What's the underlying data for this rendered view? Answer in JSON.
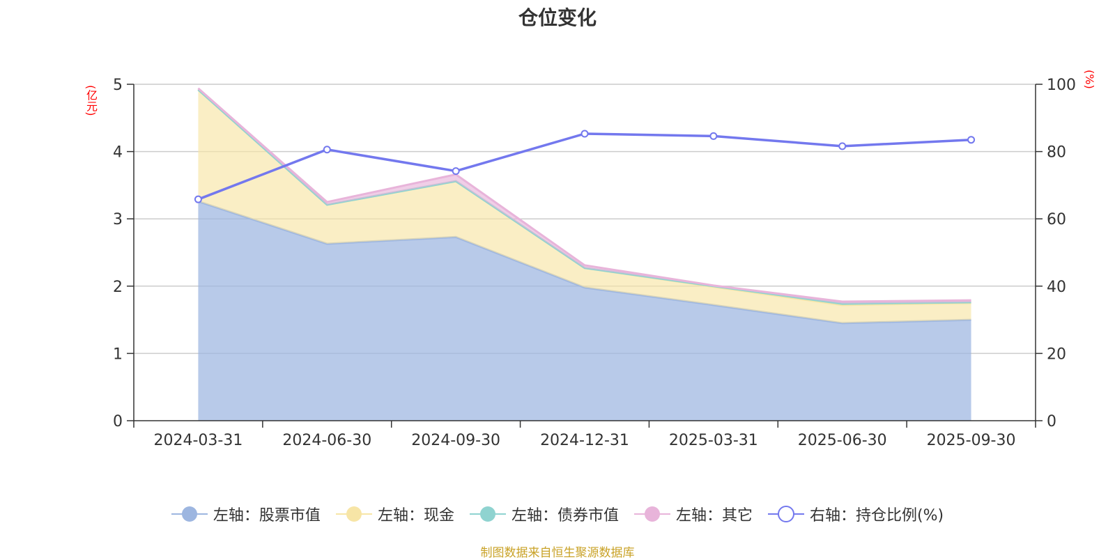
{
  "chart_data": {
    "type": "area",
    "title": "仓位变化",
    "categories": [
      "2024-03-31",
      "2024-06-30",
      "2024-09-30",
      "2024-12-31",
      "2025-03-31",
      "2025-06-30",
      "2025-09-30"
    ],
    "y_left": {
      "unit": "(亿元)",
      "ylim": [
        0,
        5
      ],
      "ticks": [
        "0",
        "1",
        "2",
        "3",
        "4",
        "5"
      ]
    },
    "y_right": {
      "unit": "(%)",
      "ylim": [
        0,
        100
      ],
      "ticks": [
        "0",
        "20",
        "40",
        "60",
        "80",
        "100"
      ]
    },
    "stacked": true,
    "grid": true,
    "legend_position": "bottom",
    "series": [
      {
        "name": "左轴：股票市值",
        "axis": "left",
        "type": "area",
        "color": "#9db6e0",
        "values": [
          3.26,
          2.63,
          2.73,
          1.98,
          1.72,
          1.45,
          1.5
        ]
      },
      {
        "name": "左轴：现金",
        "axis": "left",
        "type": "area",
        "color": "#f7e5a6",
        "values": [
          1.66,
          0.58,
          0.83,
          0.29,
          0.27,
          0.27,
          0.25
        ]
      },
      {
        "name": "左轴：债券市值",
        "axis": "left",
        "type": "area",
        "color": "#8fd3d0",
        "values": [
          0.0,
          0.0,
          0.0,
          0.0,
          0.01,
          0.02,
          0.01
        ]
      },
      {
        "name": "左轴：其它",
        "axis": "left",
        "type": "area",
        "color": "#e8b4da",
        "values": [
          0.02,
          0.04,
          0.1,
          0.04,
          0.01,
          0.03,
          0.03
        ]
      },
      {
        "name": "右轴：持仓比例(%)",
        "axis": "right",
        "type": "line",
        "color": "#7378ee",
        "values": [
          65.8,
          80.6,
          74.2,
          85.3,
          84.6,
          81.6,
          83.5
        ]
      }
    ]
  },
  "source_note": "制图数据来自恒生聚源数据库"
}
